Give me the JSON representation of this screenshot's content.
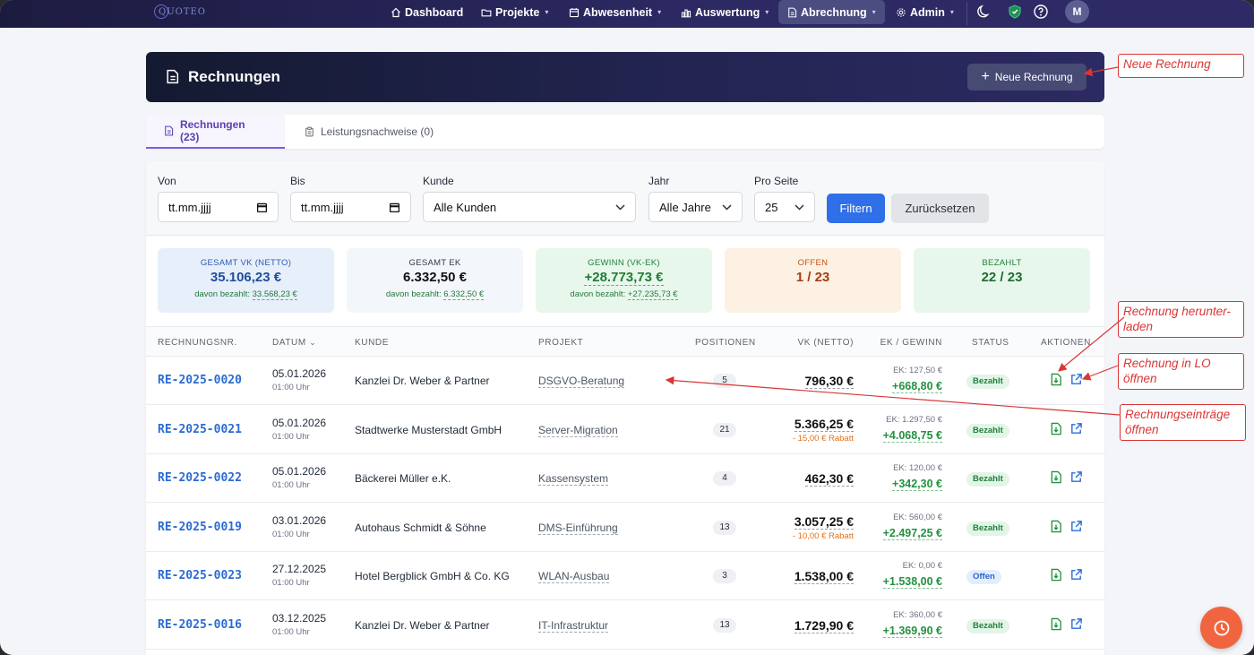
{
  "nav": {
    "logo": "QUOTEO",
    "items": [
      {
        "label": "Dashboard",
        "icon": "home-icon"
      },
      {
        "label": "Projekte",
        "icon": "folder-icon"
      },
      {
        "label": "Abwesenheit",
        "icon": "calendar-icon"
      },
      {
        "label": "Auswertung",
        "icon": "bar-chart-icon"
      },
      {
        "label": "Abrechnung",
        "icon": "document-icon"
      },
      {
        "label": "Admin",
        "icon": "gear-icon"
      }
    ],
    "avatar": "M"
  },
  "header": {
    "title": "Rechnungen",
    "new_button": "Neue Rechnung"
  },
  "tabs": [
    {
      "label": "Rechnungen (23)"
    },
    {
      "label": "Leistungsnachweise (0)"
    }
  ],
  "filters": {
    "von_label": "Von",
    "von_value": "tt.mm.jjjj",
    "bis_label": "Bis",
    "bis_value": "tt.mm.jjjj",
    "kunde_label": "Kunde",
    "kunde_value": "Alle Kunden",
    "jahr_label": "Jahr",
    "jahr_value": "Alle Jahre",
    "pro_seite_label": "Pro Seite",
    "pro_seite_value": "25",
    "filter_button": "Filtern",
    "reset_button": "Zurücksetzen"
  },
  "stats": {
    "vk": {
      "label": "GESAMT VK (NETTO)",
      "value": "35.106,23 €",
      "sub_prefix": "davon bezahlt:",
      "sub_value": "33.568,23 €"
    },
    "ek": {
      "label": "GESAMT EK",
      "value": "6.332,50 €",
      "sub_prefix": "davon bezahlt:",
      "sub_value": "6.332,50 €"
    },
    "gewinn": {
      "label": "GEWINN (VK-EK)",
      "value": "+28.773,73 €",
      "sub_prefix": "davon bezahlt:",
      "sub_value": "+27.235,73 €"
    },
    "offen": {
      "label": "OFFEN",
      "value": "1 / 23"
    },
    "bezahlt": {
      "label": "BEZAHLT",
      "value": "22 / 23"
    }
  },
  "table": {
    "headers": {
      "nr": "RECHNUNGSNR.",
      "datum": "DATUM",
      "kunde": "KUNDE",
      "projekt": "PROJEKT",
      "positionen": "POSITIONEN",
      "vk": "VK (NETTO)",
      "ek": "EK / GEWINN",
      "status": "STATUS",
      "aktionen": "AKTIONEN"
    },
    "rows": [
      {
        "nr": "RE-2025-0020",
        "date": "05.01.2026",
        "time": "01:00 Uhr",
        "kunde": "Kanzlei Dr. Weber & Partner",
        "projekt": "DSGVO-Beratung",
        "positionen": "5",
        "vk": "796,30 €",
        "rabatt": "",
        "ek": "EK: 127,50 €",
        "gewinn": "+668,80 €",
        "status": "Bezahlt"
      },
      {
        "nr": "RE-2025-0021",
        "date": "05.01.2026",
        "time": "01:00 Uhr",
        "kunde": "Stadtwerke Musterstadt GmbH",
        "projekt": "Server-Migration",
        "positionen": "21",
        "vk": "5.366,25 €",
        "rabatt": "- 15,00 € Rabatt",
        "ek": "EK: 1.297,50 €",
        "gewinn": "+4.068,75 €",
        "status": "Bezahlt"
      },
      {
        "nr": "RE-2025-0022",
        "date": "05.01.2026",
        "time": "01:00 Uhr",
        "kunde": "Bäckerei Müller e.K.",
        "projekt": "Kassensystem",
        "positionen": "4",
        "vk": "462,30 €",
        "rabatt": "",
        "ek": "EK: 120,00 €",
        "gewinn": "+342,30 €",
        "status": "Bezahlt"
      },
      {
        "nr": "RE-2025-0019",
        "date": "03.01.2026",
        "time": "01:00 Uhr",
        "kunde": "Autohaus Schmidt & Söhne",
        "projekt": "DMS-Einführung",
        "positionen": "13",
        "vk": "3.057,25 €",
        "rabatt": "- 10,00 € Rabatt",
        "ek": "EK: 560,00 €",
        "gewinn": "+2.497,25 €",
        "status": "Bezahlt"
      },
      {
        "nr": "RE-2025-0023",
        "date": "27.12.2025",
        "time": "01:00 Uhr",
        "kunde": "Hotel Bergblick GmbH & Co. KG",
        "projekt": "WLAN-Ausbau",
        "positionen": "3",
        "vk": "1.538,00 €",
        "rabatt": "",
        "ek": "EK: 0,00 €",
        "gewinn": "+1.538,00 €",
        "status": "Offen"
      },
      {
        "nr": "RE-2025-0016",
        "date": "03.12.2025",
        "time": "01:00 Uhr",
        "kunde": "Kanzlei Dr. Weber & Partner",
        "projekt": "IT-Infrastruktur",
        "positionen": "13",
        "vk": "1.729,90 €",
        "rabatt": "",
        "ek": "EK: 360,00 €",
        "gewinn": "+1.369,90 €",
        "status": "Bezahlt"
      }
    ]
  },
  "annotations": {
    "neue_rechnung": "Neue Rechnung",
    "herunterladen_1": "Rechnung herunter-",
    "herunterladen_2": "laden",
    "lo_1": "Rechnung in LO",
    "lo_2": "öffnen",
    "eintraege_1": "Rechnungseinträge",
    "eintraege_2": "öffnen",
    "color": "#d93636"
  }
}
